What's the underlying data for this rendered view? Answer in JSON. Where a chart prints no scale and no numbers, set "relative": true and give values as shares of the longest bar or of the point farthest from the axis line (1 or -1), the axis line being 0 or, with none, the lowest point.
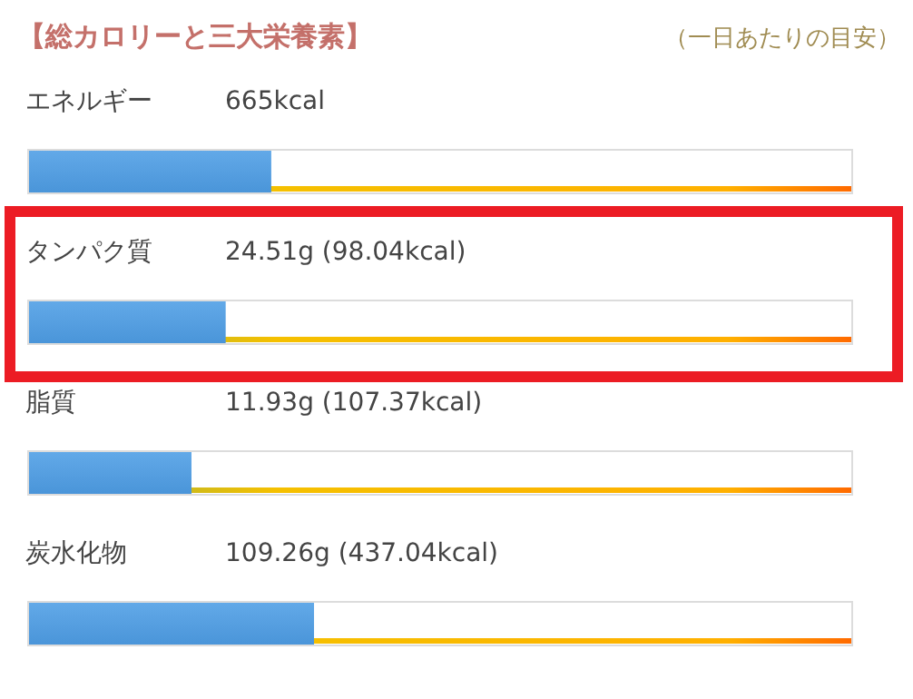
{
  "chart_data": {
    "type": "bar",
    "orientation": "horizontal",
    "relative": true,
    "title": "【総カロリーと三大栄養素】",
    "subtitle": "（一日あたりの目安）",
    "categories": [
      "エネルギー",
      "タンパク質",
      "脂質",
      "炭水化物"
    ],
    "values": [
      0.85,
      0.69,
      0.57,
      1
    ],
    "annotations": [
      "665kcal",
      "24.51g (98.04kcal)",
      "11.93g (107.37kcal)",
      "109.26g (437.04kcal)"
    ],
    "color": "#4a95d9"
  }
}
